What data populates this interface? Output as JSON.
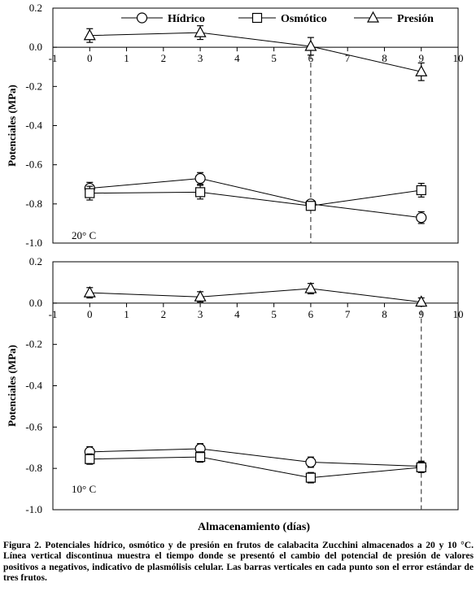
{
  "chart_data": [
    {
      "type": "line",
      "panel_label": "20° C",
      "ylabel": "Potenciales (MPa)",
      "xlim": [
        -1,
        10
      ],
      "ylim": [
        -1.0,
        0.2
      ],
      "x_ticks": [
        "-1",
        "0",
        "1",
        "2",
        "3",
        "4",
        "5",
        "6",
        "7",
        "8",
        "9",
        "10"
      ],
      "y_ticks": [
        "0.2",
        "0.0",
        "-0.2",
        "-0.4",
        "-0.6",
        "-0.8",
        "-1.0"
      ],
      "vertical_line_x": 6,
      "series": [
        {
          "name": "Hídrico",
          "marker": "circle",
          "x": [
            0,
            3,
            6,
            9
          ],
          "y": [
            -0.72,
            -0.67,
            -0.8,
            -0.87
          ],
          "err": [
            0.03,
            0.03,
            0.02,
            0.03
          ]
        },
        {
          "name": "Osmótico",
          "marker": "square",
          "x": [
            0,
            3,
            6,
            9
          ],
          "y": [
            -0.745,
            -0.74,
            -0.81,
            -0.73
          ],
          "err": [
            0.035,
            0.035,
            0.02,
            0.035
          ]
        },
        {
          "name": "Presión",
          "marker": "triangle",
          "x": [
            0,
            3,
            6,
            9
          ],
          "y": [
            0.06,
            0.075,
            0.005,
            -0.125
          ],
          "err": [
            0.035,
            0.035,
            0.045,
            0.045
          ]
        }
      ]
    },
    {
      "type": "line",
      "panel_label": "10° C",
      "ylabel": "Potenciales (MPa)",
      "xlabel": "Almacenamiento (días)",
      "xlim": [
        -1,
        10
      ],
      "ylim": [
        -1.0,
        0.2
      ],
      "x_ticks": [
        "-1",
        "0",
        "1",
        "2",
        "3",
        "4",
        "5",
        "6",
        "7",
        "8",
        "9",
        "10"
      ],
      "y_ticks": [
        "0.2",
        "0.0",
        "-0.2",
        "-0.4",
        "-0.6",
        "-0.8",
        "-1.0"
      ],
      "vertical_line_x": 9,
      "series": [
        {
          "name": "Hídrico",
          "marker": "circle",
          "x": [
            0,
            3,
            6,
            9
          ],
          "y": [
            -0.72,
            -0.705,
            -0.77,
            -0.79
          ],
          "err": [
            0.025,
            0.025,
            0.025,
            0.025
          ]
        },
        {
          "name": "Osmótico",
          "marker": "square",
          "x": [
            0,
            3,
            6,
            9
          ],
          "y": [
            -0.755,
            -0.745,
            -0.845,
            -0.795
          ],
          "err": [
            0.025,
            0.025,
            0.025,
            0.025
          ]
        },
        {
          "name": "Presión",
          "marker": "triangle",
          "x": [
            0,
            3,
            6,
            9
          ],
          "y": [
            0.05,
            0.03,
            0.07,
            0.005
          ],
          "err": [
            0.025,
            0.025,
            0.025,
            0.02
          ]
        }
      ]
    }
  ],
  "legend": [
    "Hídrico",
    "Osmótico",
    "Presión"
  ],
  "caption": "Figura 2. Potenciales hídrico, osmótico y de presión en frutos de calabacita Zucchini almacenados a 20 y 10 °C. Línea vertical discontinua muestra el tiempo donde se presentó el cambio del potencial de presión de valores positivos a negativos, indicativo de plasmólisis celular. Las barras verticales en cada punto son el error estándar de tres frutos."
}
